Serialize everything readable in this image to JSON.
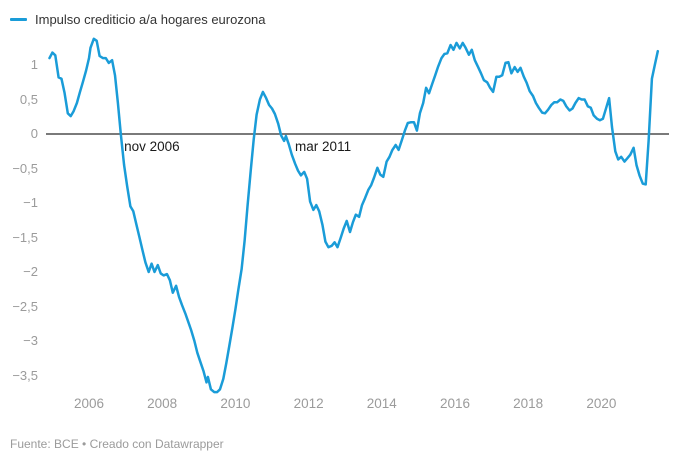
{
  "legend": {
    "label": "Impulso crediticio a/a hogares eurozona"
  },
  "footer": {
    "text": "Fuente: BCE • Creado con Datawrapper"
  },
  "colors": {
    "line": "#1a9cd8",
    "zero_line": "#2b2b2b",
    "tick_text": "#9b9b9b",
    "annotation_text": "#1a1a1a"
  },
  "chart_data": {
    "type": "line",
    "title": "",
    "xlabel": "",
    "ylabel": "",
    "grid": false,
    "legend_position": "top-left",
    "xlim": [
      2004.9,
      2021.9
    ],
    "ylim": [
      -3.9,
      1.45
    ],
    "yticks": [
      {
        "v": 1,
        "label": "1"
      },
      {
        "v": 0.5,
        "label": "0,5"
      },
      {
        "v": 0,
        "label": "0"
      },
      {
        "v": -0.5,
        "label": "−0,5"
      },
      {
        "v": -1,
        "label": "−1"
      },
      {
        "v": -1.5,
        "label": "−1,5"
      },
      {
        "v": -2,
        "label": "−2"
      },
      {
        "v": -2.5,
        "label": "−2,5"
      },
      {
        "v": -3,
        "label": "−3"
      },
      {
        "v": -3.5,
        "label": "−3,5"
      }
    ],
    "xticks": [
      {
        "v": 2006,
        "label": "2006"
      },
      {
        "v": 2008,
        "label": "2008"
      },
      {
        "v": 2010,
        "label": "2010"
      },
      {
        "v": 2012,
        "label": "2012"
      },
      {
        "v": 2014,
        "label": "2014"
      },
      {
        "v": 2016,
        "label": "2016"
      },
      {
        "v": 2018,
        "label": "2018"
      },
      {
        "v": 2020,
        "label": "2020"
      }
    ],
    "annotations": [
      {
        "text": "nov 2006",
        "year": 2006.96,
        "value": 0
      },
      {
        "text": "mar 2011",
        "year": 2011.63,
        "value": 0
      }
    ],
    "series": [
      {
        "name": "Impulso crediticio a/a hogares eurozona",
        "points": [
          [
            2004.92,
            1.1
          ],
          [
            2005.0,
            1.18
          ],
          [
            2005.08,
            1.14
          ],
          [
            2005.17,
            0.82
          ],
          [
            2005.25,
            0.8
          ],
          [
            2005.33,
            0.6
          ],
          [
            2005.42,
            0.3
          ],
          [
            2005.5,
            0.26
          ],
          [
            2005.58,
            0.33
          ],
          [
            2005.67,
            0.45
          ],
          [
            2005.75,
            0.6
          ],
          [
            2005.83,
            0.75
          ],
          [
            2005.92,
            0.92
          ],
          [
            2006.0,
            1.1
          ],
          [
            2006.04,
            1.25
          ],
          [
            2006.13,
            1.38
          ],
          [
            2006.21,
            1.35
          ],
          [
            2006.29,
            1.13
          ],
          [
            2006.38,
            1.1
          ],
          [
            2006.46,
            1.1
          ],
          [
            2006.54,
            1.03
          ],
          [
            2006.63,
            1.07
          ],
          [
            2006.71,
            0.85
          ],
          [
            2006.79,
            0.45
          ],
          [
            2006.87,
            0.0
          ],
          [
            2006.96,
            -0.45
          ],
          [
            2007.04,
            -0.75
          ],
          [
            2007.13,
            -1.05
          ],
          [
            2007.21,
            -1.12
          ],
          [
            2007.29,
            -1.3
          ],
          [
            2007.38,
            -1.5
          ],
          [
            2007.46,
            -1.68
          ],
          [
            2007.54,
            -1.86
          ],
          [
            2007.63,
            -2.0
          ],
          [
            2007.71,
            -1.88
          ],
          [
            2007.79,
            -2.0
          ],
          [
            2007.88,
            -1.9
          ],
          [
            2007.96,
            -2.02
          ],
          [
            2008.04,
            -2.05
          ],
          [
            2008.13,
            -2.03
          ],
          [
            2008.21,
            -2.12
          ],
          [
            2008.29,
            -2.3
          ],
          [
            2008.38,
            -2.2
          ],
          [
            2008.46,
            -2.36
          ],
          [
            2008.54,
            -2.48
          ],
          [
            2008.63,
            -2.6
          ],
          [
            2008.71,
            -2.72
          ],
          [
            2008.79,
            -2.84
          ],
          [
            2008.88,
            -3.0
          ],
          [
            2008.96,
            -3.17
          ],
          [
            2009.04,
            -3.3
          ],
          [
            2009.13,
            -3.44
          ],
          [
            2009.21,
            -3.6
          ],
          [
            2009.25,
            -3.52
          ],
          [
            2009.33,
            -3.7
          ],
          [
            2009.42,
            -3.74
          ],
          [
            2009.5,
            -3.74
          ],
          [
            2009.58,
            -3.7
          ],
          [
            2009.67,
            -3.55
          ],
          [
            2009.75,
            -3.32
          ],
          [
            2009.83,
            -3.08
          ],
          [
            2009.92,
            -2.8
          ],
          [
            2010.0,
            -2.54
          ],
          [
            2010.08,
            -2.26
          ],
          [
            2010.17,
            -1.96
          ],
          [
            2010.25,
            -1.55
          ],
          [
            2010.33,
            -1.05
          ],
          [
            2010.42,
            -0.52
          ],
          [
            2010.5,
            -0.08
          ],
          [
            2010.58,
            0.28
          ],
          [
            2010.67,
            0.5
          ],
          [
            2010.75,
            0.61
          ],
          [
            2010.83,
            0.53
          ],
          [
            2010.92,
            0.42
          ],
          [
            2011.0,
            0.37
          ],
          [
            2011.08,
            0.29
          ],
          [
            2011.17,
            0.15
          ],
          [
            2011.25,
            -0.02
          ],
          [
            2011.33,
            -0.1
          ],
          [
            2011.38,
            -0.03
          ],
          [
            2011.46,
            -0.15
          ],
          [
            2011.54,
            -0.3
          ],
          [
            2011.63,
            -0.43
          ],
          [
            2011.71,
            -0.53
          ],
          [
            2011.79,
            -0.6
          ],
          [
            2011.88,
            -0.55
          ],
          [
            2011.96,
            -0.65
          ],
          [
            2012.04,
            -0.98
          ],
          [
            2012.13,
            -1.1
          ],
          [
            2012.21,
            -1.03
          ],
          [
            2012.29,
            -1.12
          ],
          [
            2012.38,
            -1.32
          ],
          [
            2012.46,
            -1.56
          ],
          [
            2012.54,
            -1.64
          ],
          [
            2012.63,
            -1.62
          ],
          [
            2012.71,
            -1.57
          ],
          [
            2012.79,
            -1.64
          ],
          [
            2012.88,
            -1.5
          ],
          [
            2012.96,
            -1.37
          ],
          [
            2013.04,
            -1.26
          ],
          [
            2013.13,
            -1.42
          ],
          [
            2013.21,
            -1.28
          ],
          [
            2013.29,
            -1.17
          ],
          [
            2013.38,
            -1.2
          ],
          [
            2013.46,
            -1.03
          ],
          [
            2013.54,
            -0.93
          ],
          [
            2013.63,
            -0.81
          ],
          [
            2013.71,
            -0.74
          ],
          [
            2013.79,
            -0.63
          ],
          [
            2013.88,
            -0.49
          ],
          [
            2013.96,
            -0.59
          ],
          [
            2014.04,
            -0.62
          ],
          [
            2014.13,
            -0.4
          ],
          [
            2014.21,
            -0.33
          ],
          [
            2014.29,
            -0.23
          ],
          [
            2014.38,
            -0.16
          ],
          [
            2014.46,
            -0.23
          ],
          [
            2014.54,
            -0.1
          ],
          [
            2014.63,
            0.05
          ],
          [
            2014.71,
            0.16
          ],
          [
            2014.79,
            0.17
          ],
          [
            2014.88,
            0.17
          ],
          [
            2014.96,
            0.05
          ],
          [
            2015.04,
            0.3
          ],
          [
            2015.13,
            0.45
          ],
          [
            2015.21,
            0.67
          ],
          [
            2015.29,
            0.59
          ],
          [
            2015.38,
            0.73
          ],
          [
            2015.46,
            0.85
          ],
          [
            2015.54,
            0.98
          ],
          [
            2015.63,
            1.1
          ],
          [
            2015.71,
            1.16
          ],
          [
            2015.79,
            1.17
          ],
          [
            2015.88,
            1.29
          ],
          [
            2015.96,
            1.22
          ],
          [
            2016.04,
            1.32
          ],
          [
            2016.13,
            1.24
          ],
          [
            2016.21,
            1.32
          ],
          [
            2016.29,
            1.25
          ],
          [
            2016.38,
            1.15
          ],
          [
            2016.46,
            1.22
          ],
          [
            2016.54,
            1.07
          ],
          [
            2016.63,
            0.97
          ],
          [
            2016.71,
            0.88
          ],
          [
            2016.79,
            0.78
          ],
          [
            2016.88,
            0.75
          ],
          [
            2016.96,
            0.67
          ],
          [
            2017.04,
            0.61
          ],
          [
            2017.13,
            0.83
          ],
          [
            2017.21,
            0.83
          ],
          [
            2017.29,
            0.85
          ],
          [
            2017.38,
            1.03
          ],
          [
            2017.46,
            1.04
          ],
          [
            2017.54,
            0.88
          ],
          [
            2017.63,
            0.97
          ],
          [
            2017.71,
            0.9
          ],
          [
            2017.79,
            0.96
          ],
          [
            2017.88,
            0.83
          ],
          [
            2017.96,
            0.74
          ],
          [
            2018.04,
            0.62
          ],
          [
            2018.13,
            0.55
          ],
          [
            2018.21,
            0.45
          ],
          [
            2018.29,
            0.38
          ],
          [
            2018.38,
            0.31
          ],
          [
            2018.46,
            0.3
          ],
          [
            2018.54,
            0.35
          ],
          [
            2018.63,
            0.42
          ],
          [
            2018.71,
            0.46
          ],
          [
            2018.79,
            0.46
          ],
          [
            2018.88,
            0.5
          ],
          [
            2018.96,
            0.48
          ],
          [
            2019.04,
            0.4
          ],
          [
            2019.13,
            0.34
          ],
          [
            2019.21,
            0.37
          ],
          [
            2019.29,
            0.45
          ],
          [
            2019.38,
            0.52
          ],
          [
            2019.46,
            0.5
          ],
          [
            2019.54,
            0.5
          ],
          [
            2019.63,
            0.4
          ],
          [
            2019.71,
            0.38
          ],
          [
            2019.79,
            0.27
          ],
          [
            2019.88,
            0.22
          ],
          [
            2019.96,
            0.2
          ],
          [
            2020.04,
            0.22
          ],
          [
            2020.13,
            0.38
          ],
          [
            2020.21,
            0.52
          ],
          [
            2020.29,
            0.1
          ],
          [
            2020.38,
            -0.25
          ],
          [
            2020.46,
            -0.37
          ],
          [
            2020.54,
            -0.33
          ],
          [
            2020.63,
            -0.4
          ],
          [
            2020.71,
            -0.35
          ],
          [
            2020.79,
            -0.3
          ],
          [
            2020.88,
            -0.2
          ],
          [
            2020.96,
            -0.45
          ],
          [
            2021.04,
            -0.6
          ],
          [
            2021.13,
            -0.72
          ],
          [
            2021.21,
            -0.73
          ],
          [
            2021.29,
            -0.1
          ],
          [
            2021.38,
            0.8
          ],
          [
            2021.46,
            1.0
          ],
          [
            2021.54,
            1.2
          ]
        ]
      }
    ]
  }
}
